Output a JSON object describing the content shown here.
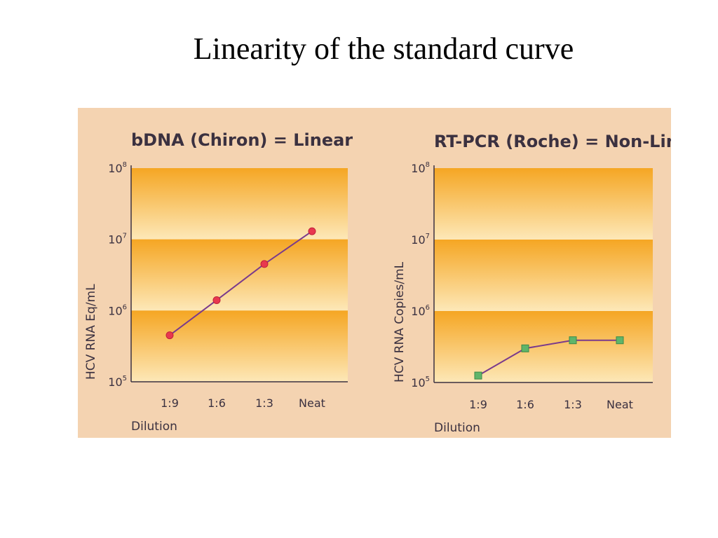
{
  "slide_title": "Linearity of the standard curve",
  "colors": {
    "panel_bg": "#f4d3b1",
    "band_dark": "#f5a623",
    "band_light": "#fde8b8",
    "line": "#7a3a8c",
    "marker_left": "#e8384f",
    "marker_right": "#5fb56a",
    "text": "#3b3140"
  },
  "chart_data": [
    {
      "type": "line",
      "title": "bDNA (Chiron) = Linear",
      "ylabel": "HCV RNA Eq/mL",
      "xlabel": "Dilution",
      "categories": [
        "1:9",
        "1:6",
        "1:3",
        "Neat"
      ],
      "y_scale": "log",
      "ylim": [
        100000,
        100000000
      ],
      "yticks": [
        {
          "base": "10",
          "exp": "5",
          "value": 100000
        },
        {
          "base": "10",
          "exp": "6",
          "value": 1000000
        },
        {
          "base": "10",
          "exp": "7",
          "value": 10000000
        },
        {
          "base": "10",
          "exp": "8",
          "value": 100000000
        }
      ],
      "series": [
        {
          "marker": "circle",
          "values": [
            450000,
            1400000,
            4500000,
            13000000
          ]
        }
      ]
    },
    {
      "type": "line",
      "title": "RT-PCR (Roche) = Non-Linear",
      "ylabel": "HCV RNA Copies/mL",
      "xlabel": "Dilution",
      "categories": [
        "1:9",
        "1:6",
        "1:3",
        "Neat"
      ],
      "y_scale": "log",
      "ylim": [
        100000,
        100000000
      ],
      "yticks": [
        {
          "base": "10",
          "exp": "5",
          "value": 100000
        },
        {
          "base": "10",
          "exp": "6",
          "value": 1000000
        },
        {
          "base": "10",
          "exp": "7",
          "value": 10000000
        },
        {
          "base": "10",
          "exp": "8",
          "value": 100000000
        }
      ],
      "series": [
        {
          "marker": "square",
          "values": [
            125000,
            300000,
            390000,
            390000
          ]
        }
      ]
    }
  ]
}
